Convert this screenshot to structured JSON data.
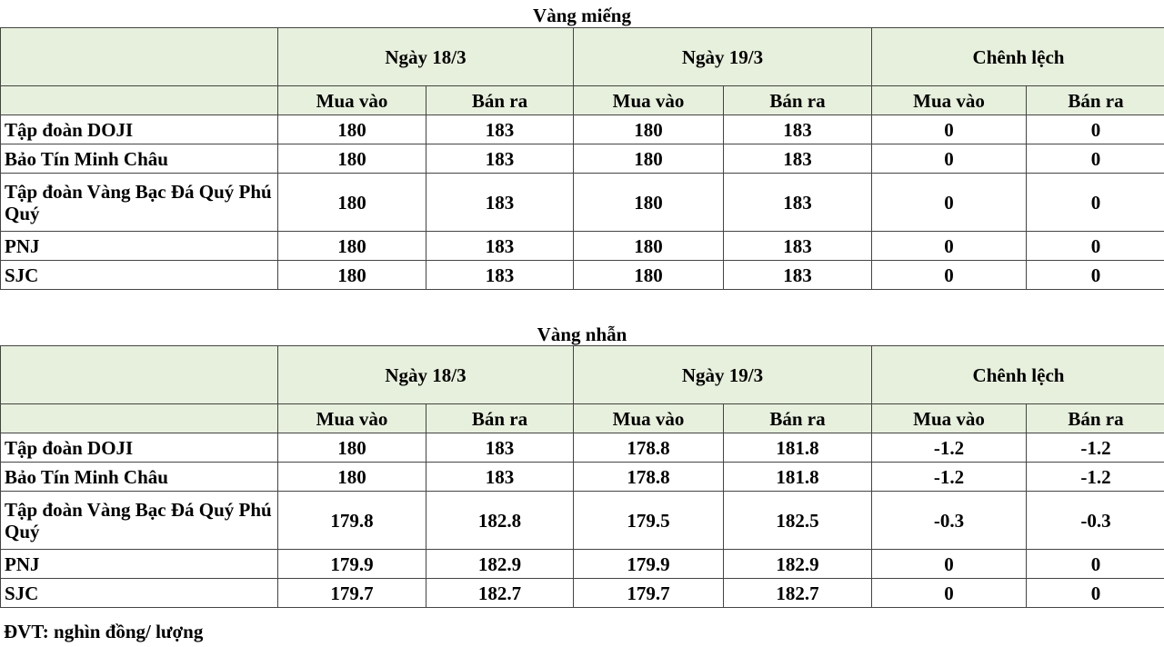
{
  "tables": [
    {
      "title": "Vàng miếng",
      "groups": [
        "Ngày 18/3",
        "Ngày 19/3",
        "Chênh lệch"
      ],
      "sub": [
        "Mua vào",
        "Bán ra",
        "Mua vào",
        "Bán ra",
        "Mua vào",
        "Bán ra"
      ],
      "rows": [
        {
          "name": "Tập đoàn DOJI",
          "v": [
            "180",
            "183",
            "180",
            "183",
            "0",
            "0"
          ]
        },
        {
          "name": "Bảo Tín Minh Châu",
          "v": [
            "180",
            "183",
            "180",
            "183",
            "0",
            "0"
          ]
        },
        {
          "name": "Tập đoàn Vàng Bạc Đá Quý Phú Quý",
          "v": [
            "180",
            "183",
            "180",
            "183",
            "0",
            "0"
          ]
        },
        {
          "name": "PNJ",
          "v": [
            "180",
            "183",
            "180",
            "183",
            "0",
            "0"
          ]
        },
        {
          "name": "SJC",
          "v": [
            "180",
            "183",
            "180",
            "183",
            "0",
            "0"
          ]
        }
      ]
    },
    {
      "title": "Vàng nhẫn",
      "groups": [
        "Ngày 18/3",
        "Ngày 19/3",
        "Chênh lệch"
      ],
      "sub": [
        "Mua vào",
        "Bán ra",
        "Mua vào",
        "Bán ra",
        "Mua vào",
        "Bán ra"
      ],
      "rows": [
        {
          "name": "Tập đoàn DOJI",
          "v": [
            "180",
            "183",
            "178.8",
            "181.8",
            "-1.2",
            "-1.2"
          ]
        },
        {
          "name": "Bảo Tín Minh Châu",
          "v": [
            "180",
            "183",
            "178.8",
            "181.8",
            "-1.2",
            "-1.2"
          ]
        },
        {
          "name": "Tập đoàn Vàng Bạc Đá Quý Phú Quý",
          "v": [
            "179.8",
            "182.8",
            "179.5",
            "182.5",
            "-0.3",
            "-0.3"
          ]
        },
        {
          "name": "PNJ",
          "v": [
            "179.9",
            "182.9",
            "179.9",
            "182.9",
            "0",
            "0"
          ]
        },
        {
          "name": "SJC",
          "v": [
            "179.7",
            "182.7",
            "179.7",
            "182.7",
            "0",
            "0"
          ]
        }
      ]
    }
  ],
  "footer": "ĐVT: nghìn đồng/ lượng",
  "colors": {
    "header_bg": "#e7f0dc",
    "border": "#444444"
  }
}
